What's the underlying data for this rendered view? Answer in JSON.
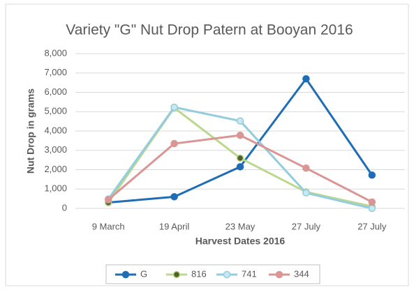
{
  "chart_data": {
    "type": "line",
    "title": "Variety \"G\" Nut Drop Patern at Booyan 2016",
    "xlabel": "Harvest Dates 2016",
    "ylabel": "Nut Drop in grams",
    "categories": [
      "9 March",
      "19 April",
      "23 May",
      "27 July",
      "27 July"
    ],
    "series": [
      {
        "name": "G",
        "color": "#1f6db5",
        "marker_fill": "#1f6db5",
        "values": [
          300,
          600,
          2150,
          6700,
          1720
        ]
      },
      {
        "name": "816",
        "color": "#bcd88f",
        "marker_fill": "#4f6228",
        "values": [
          300,
          5200,
          2600,
          850,
          100
        ]
      },
      {
        "name": "741",
        "color": "#93cddd",
        "marker_fill": "#c6e8ee",
        "values": [
          480,
          5230,
          4520,
          800,
          0
        ]
      },
      {
        "name": "344",
        "color": "#d99694",
        "marker_fill": "#d99694",
        "values": [
          450,
          3350,
          3780,
          2080,
          330
        ]
      }
    ],
    "ylim": [
      0,
      8000
    ],
    "yticks": [
      0,
      {
        "value": 1000,
        "label": "1,000"
      },
      {
        "value": 2000,
        "label": "2,000"
      },
      {
        "value": 3000,
        "label": "3,000"
      },
      {
        "value": 4000,
        "label": "4,000"
      },
      {
        "value": 5000,
        "label": "5,000"
      },
      {
        "value": 6000,
        "label": "6,000"
      },
      {
        "value": 7000,
        "label": "7,000"
      },
      {
        "value": 8000,
        "label": "8,000"
      }
    ],
    "grid": true,
    "legend": "bottom"
  }
}
